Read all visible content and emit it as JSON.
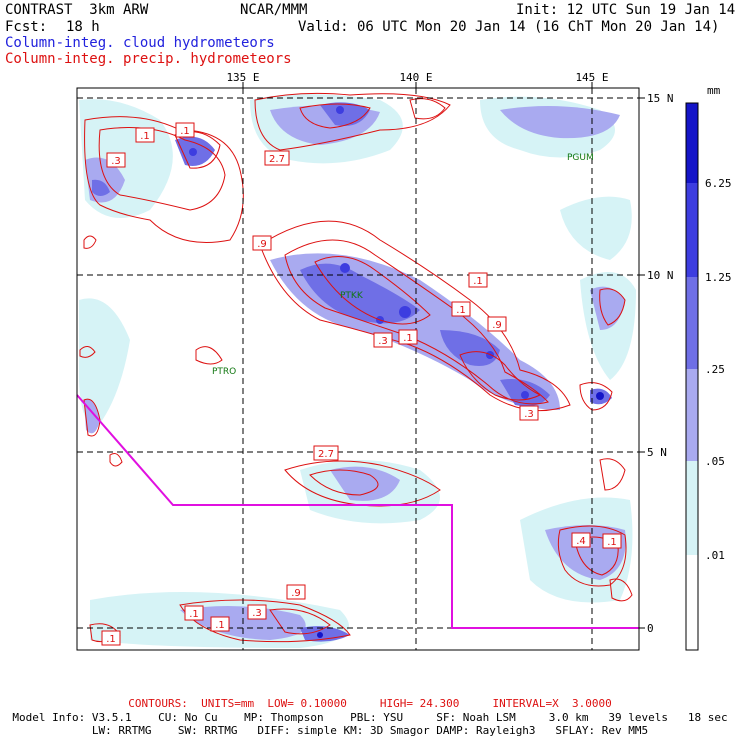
{
  "header": {
    "model": "CONTRAST  3km ARW",
    "org": "NCAR/MMM",
    "init": "Init: 12 UTC Sun 19 Jan 14",
    "fcst_label": "Fcst:",
    "fcst_value": "18 h",
    "valid": "Valid: 06 UTC Mon 20 Jan 14 (16 ChT Mon 20 Jan 14)",
    "legend_cloud": "Column-integ. cloud hydrometeors",
    "legend_precip": "Column-integ. precip. hydrometeors"
  },
  "map": {
    "lon_labels": [
      "135 E",
      "140 E",
      "145 E"
    ],
    "lat_labels": [
      "15 N",
      "10 N",
      "5 N",
      "0"
    ],
    "stations": [
      "PGUM",
      "PTKK",
      "PTRO"
    ],
    "contour_labels": [
      ".1",
      ".1",
      ".3",
      "2.7",
      ".9",
      ".1",
      ".1",
      ".9",
      ".3",
      ".1",
      ".3",
      "2.7",
      ".4",
      ".1",
      ".9",
      ".1",
      ".1",
      ".3",
      ".1"
    ],
    "boundary_color": "#e010e0",
    "contour_color": "#dd1111"
  },
  "colorbar": {
    "unit": "mm",
    "levels": [
      "6.25",
      "1.25",
      ".25",
      ".05",
      ".01"
    ],
    "colors": [
      "#1515c8",
      "#3d3de0",
      "#6f6fe6",
      "#a9aaf0",
      "#d6f3f6",
      "#ffffff"
    ]
  },
  "footer": {
    "contours": "CONTOURS:  UNITS=mm  LOW= 0.10000     HIGH= 24.300     INTERVAL=X  3.0000",
    "model_info": "Model Info: V3.5.1    CU: No Cu    MP: Thompson    PBL: YSU     SF: Noah LSM     3.0 km   39 levels   18 sec",
    "physics": "LW: RRTMG    SW: RRTMG   DIFF: simple KM: 3D Smagor DAMP: Rayleigh3   SFLAY: Rev MM5"
  }
}
